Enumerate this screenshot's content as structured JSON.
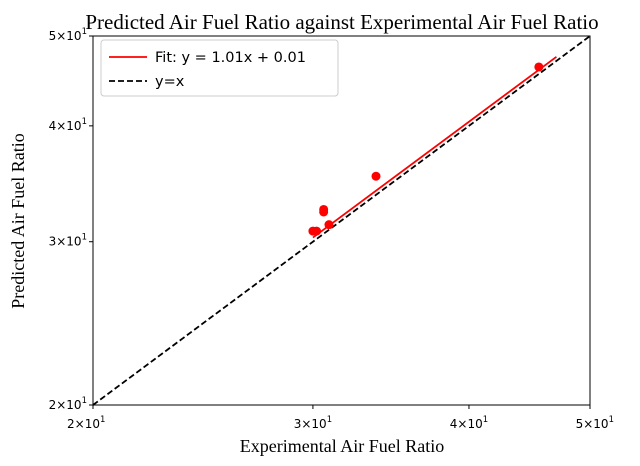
{
  "chart_data": {
    "type": "scatter",
    "title": "Predicted Air Fuel Ratio against Experimental Air Fuel Ratio",
    "xlabel": "Experimental Air Fuel Ratio",
    "ylabel": "Predicted Air Fuel Ratio",
    "xscale": "log",
    "yscale": "log",
    "xlim": [
      20,
      50
    ],
    "ylim": [
      20,
      50
    ],
    "x_ticks": [
      {
        "value": 20,
        "base": "2×10",
        "exp": "1"
      },
      {
        "value": 30,
        "base": "3×10",
        "exp": "1"
      },
      {
        "value": 40,
        "base": "4×10",
        "exp": "1"
      },
      {
        "value": 50,
        "base": "5×10",
        "exp": "1"
      }
    ],
    "y_ticks": [
      {
        "value": 20,
        "base": "2×10",
        "exp": "1"
      },
      {
        "value": 30,
        "base": "3×10",
        "exp": "1"
      },
      {
        "value": 40,
        "base": "4×10",
        "exp": "1"
      },
      {
        "value": 50,
        "base": "5×10",
        "exp": "1"
      }
    ],
    "points": {
      "color": "#ff0000",
      "x": [
        30.0,
        30.2,
        30.6,
        30.6,
        30.9,
        33.7,
        45.5
      ],
      "y": [
        30.8,
        30.8,
        32.3,
        32.5,
        31.3,
        35.3,
        46.3
      ]
    },
    "series": [
      {
        "name": "Fit: y = 1.01x + 0.01",
        "kind": "fit",
        "slope": 1.01,
        "intercept": 0.01,
        "x_range": [
          30.0,
          47.0
        ],
        "color": "#ff0000",
        "dash": "solid"
      },
      {
        "name": "y=x",
        "kind": "identity",
        "x_range": [
          20,
          50
        ],
        "color": "#000000",
        "dash": "dashed"
      }
    ],
    "legend": "upper-left",
    "grid": false
  }
}
